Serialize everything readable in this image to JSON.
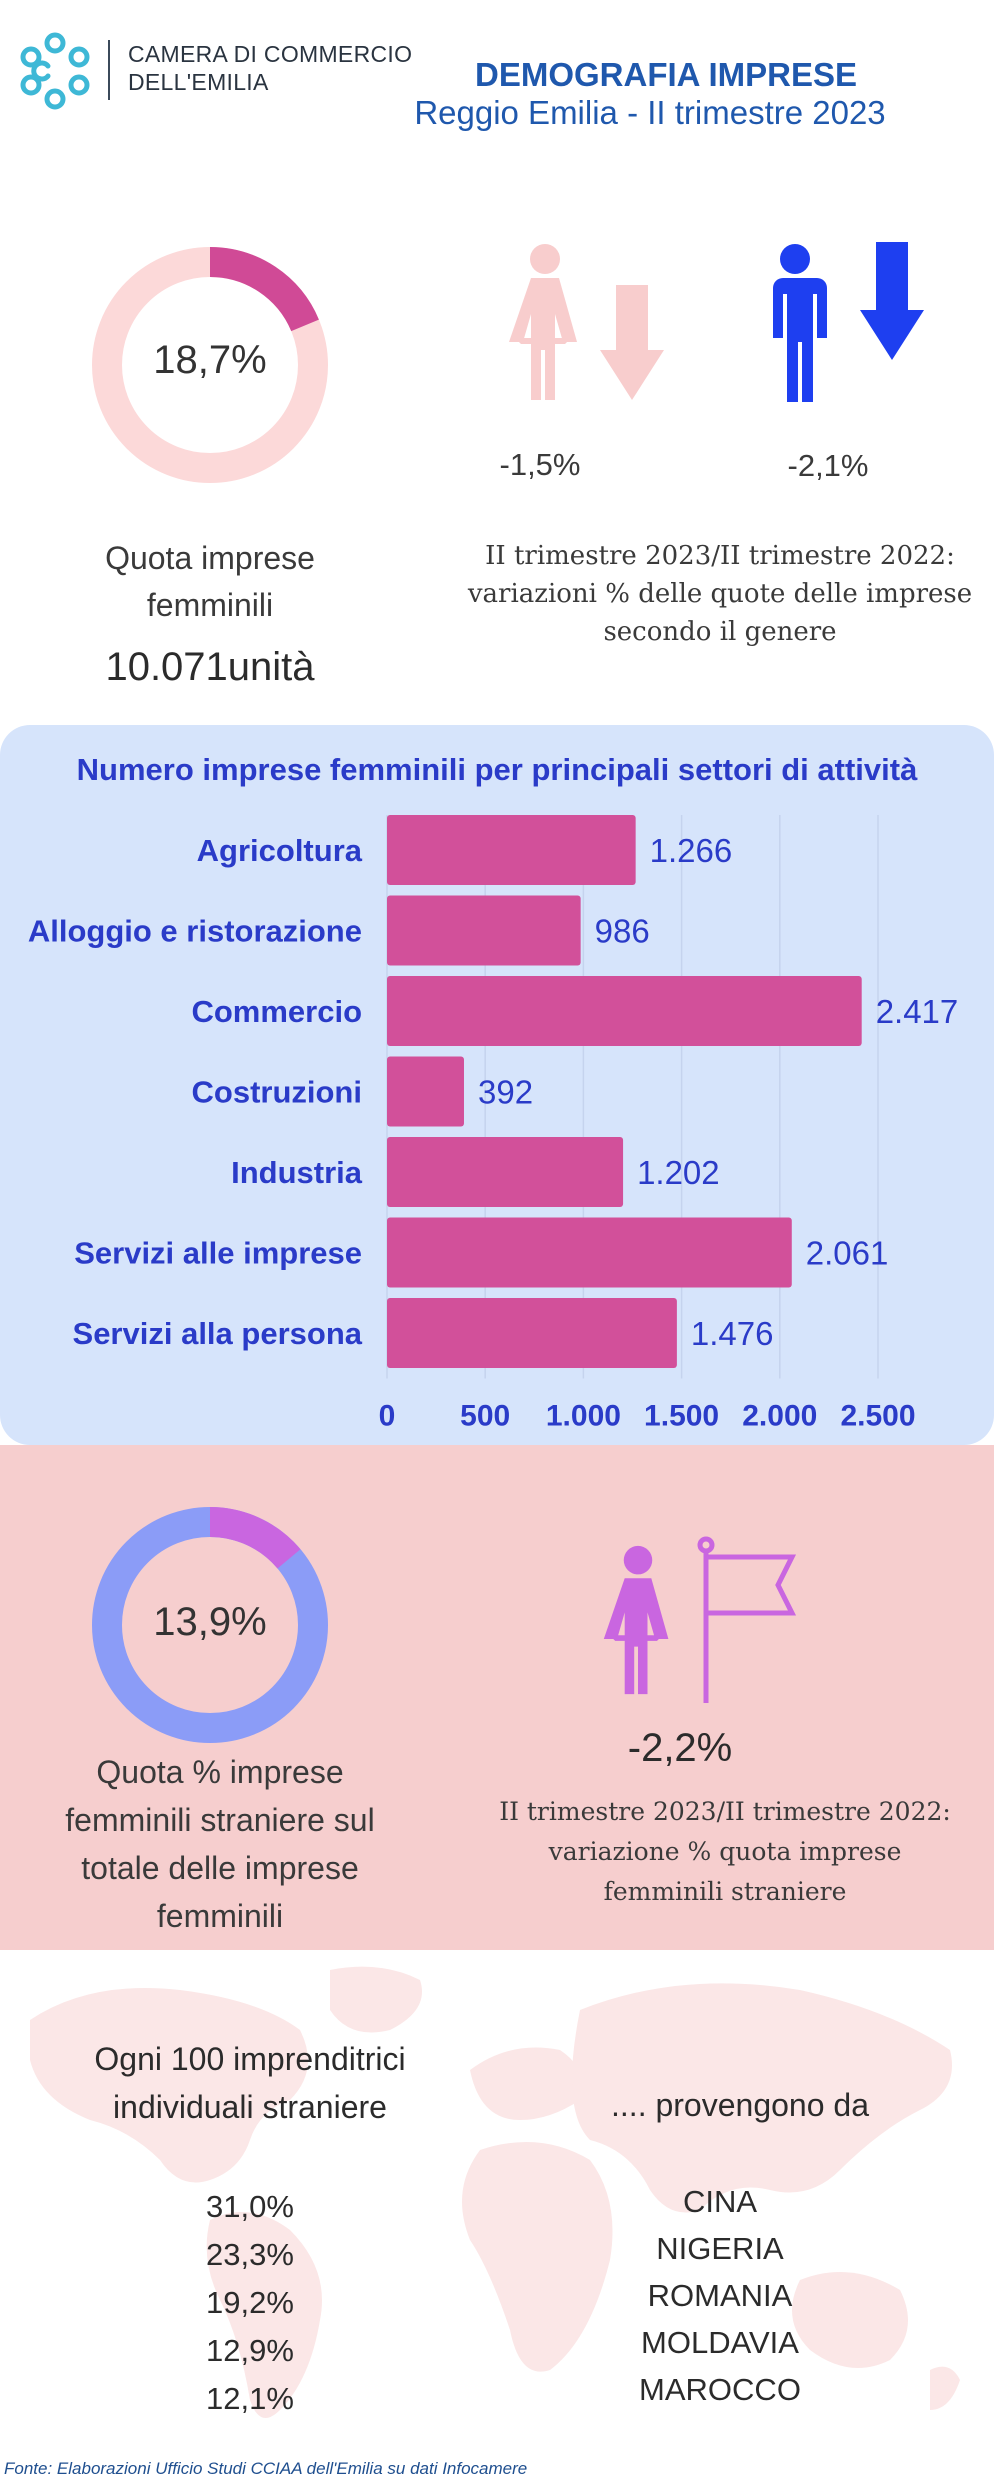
{
  "header": {
    "org_line1": "CAMERA DI COMMERCIO",
    "org_line2": "DELL'EMILIA",
    "title": "DEMOGRAFIA IMPRESE",
    "subtitle": "Reggio Emilia - II trimestre 2023"
  },
  "female_share": {
    "value_text": "18,7%",
    "value": 18.7,
    "label_line1": "Quota imprese",
    "label_line2": "femminili",
    "units": "10.071unità",
    "color_fill": "#d04a96",
    "color_track": "#fcd9d9"
  },
  "gender_change": {
    "female_value": "-1,5%",
    "male_value": "-2,1%",
    "desc_line1": "II trimestre 2023/II trimestre 2022:",
    "desc_line2": "variazioni % delle quote delle imprese",
    "desc_line3": "secondo il genere",
    "female_color": "#f8cdcd",
    "male_color": "#1e3ff0"
  },
  "chart_data": {
    "type": "bar",
    "orientation": "horizontal",
    "title": "Numero imprese femminili per principali settori di attività",
    "categories": [
      "Agricoltura",
      "Alloggio e ristorazione",
      "Commercio",
      "Costruzioni",
      "Industria",
      "Servizi alle imprese",
      "Servizi alla persona"
    ],
    "values": [
      1266,
      986,
      2417,
      392,
      1202,
      2061,
      1476
    ],
    "value_labels": [
      "1.266",
      "986",
      "2.417",
      "392",
      "1.202",
      "2.061",
      "1.476"
    ],
    "x_ticks": [
      0,
      500,
      1000,
      1500,
      2000,
      2500
    ],
    "x_tick_labels": [
      "0",
      "500",
      "1.000",
      "1.500",
      "2.000",
      "2.500"
    ],
    "xlim": [
      0,
      2500
    ],
    "grid": true,
    "bar_color": "#d2509a",
    "label_color": "#2a3bc8"
  },
  "foreign_share": {
    "value_text": "13,9%",
    "value": 13.9,
    "label_line1": "Quota  % imprese",
    "label_line2": "femminili straniere sul",
    "label_line3": "totale delle imprese",
    "label_line4": "femminili",
    "color_fill": "#c966e0",
    "color_track": "#8b9cf7"
  },
  "foreign_change": {
    "value": "-2,2%",
    "desc_line1": "II trimestre 2023/II trimestre 2022:",
    "desc_line2": "variazione % quota imprese",
    "desc_line3": "femminili straniere",
    "icon_color": "#c966e0"
  },
  "origins": {
    "left_line1": "Ogni 100 imprenditrici",
    "left_line2": "individuali straniere",
    "right_heading": ".... provengono da",
    "items": [
      {
        "pct": "31,0%",
        "country": "CINA"
      },
      {
        "pct": "23,3%",
        "country": "NIGERIA"
      },
      {
        "pct": "19,2%",
        "country": "ROMANIA"
      },
      {
        "pct": "12,9%",
        "country": "MOLDAVIA"
      },
      {
        "pct": "12,1%",
        "country": "MAROCCO"
      }
    ]
  },
  "source": "Fonte: Elaborazioni Ufficio Studi CCIAA dell'Emilia su dati Infocamere"
}
